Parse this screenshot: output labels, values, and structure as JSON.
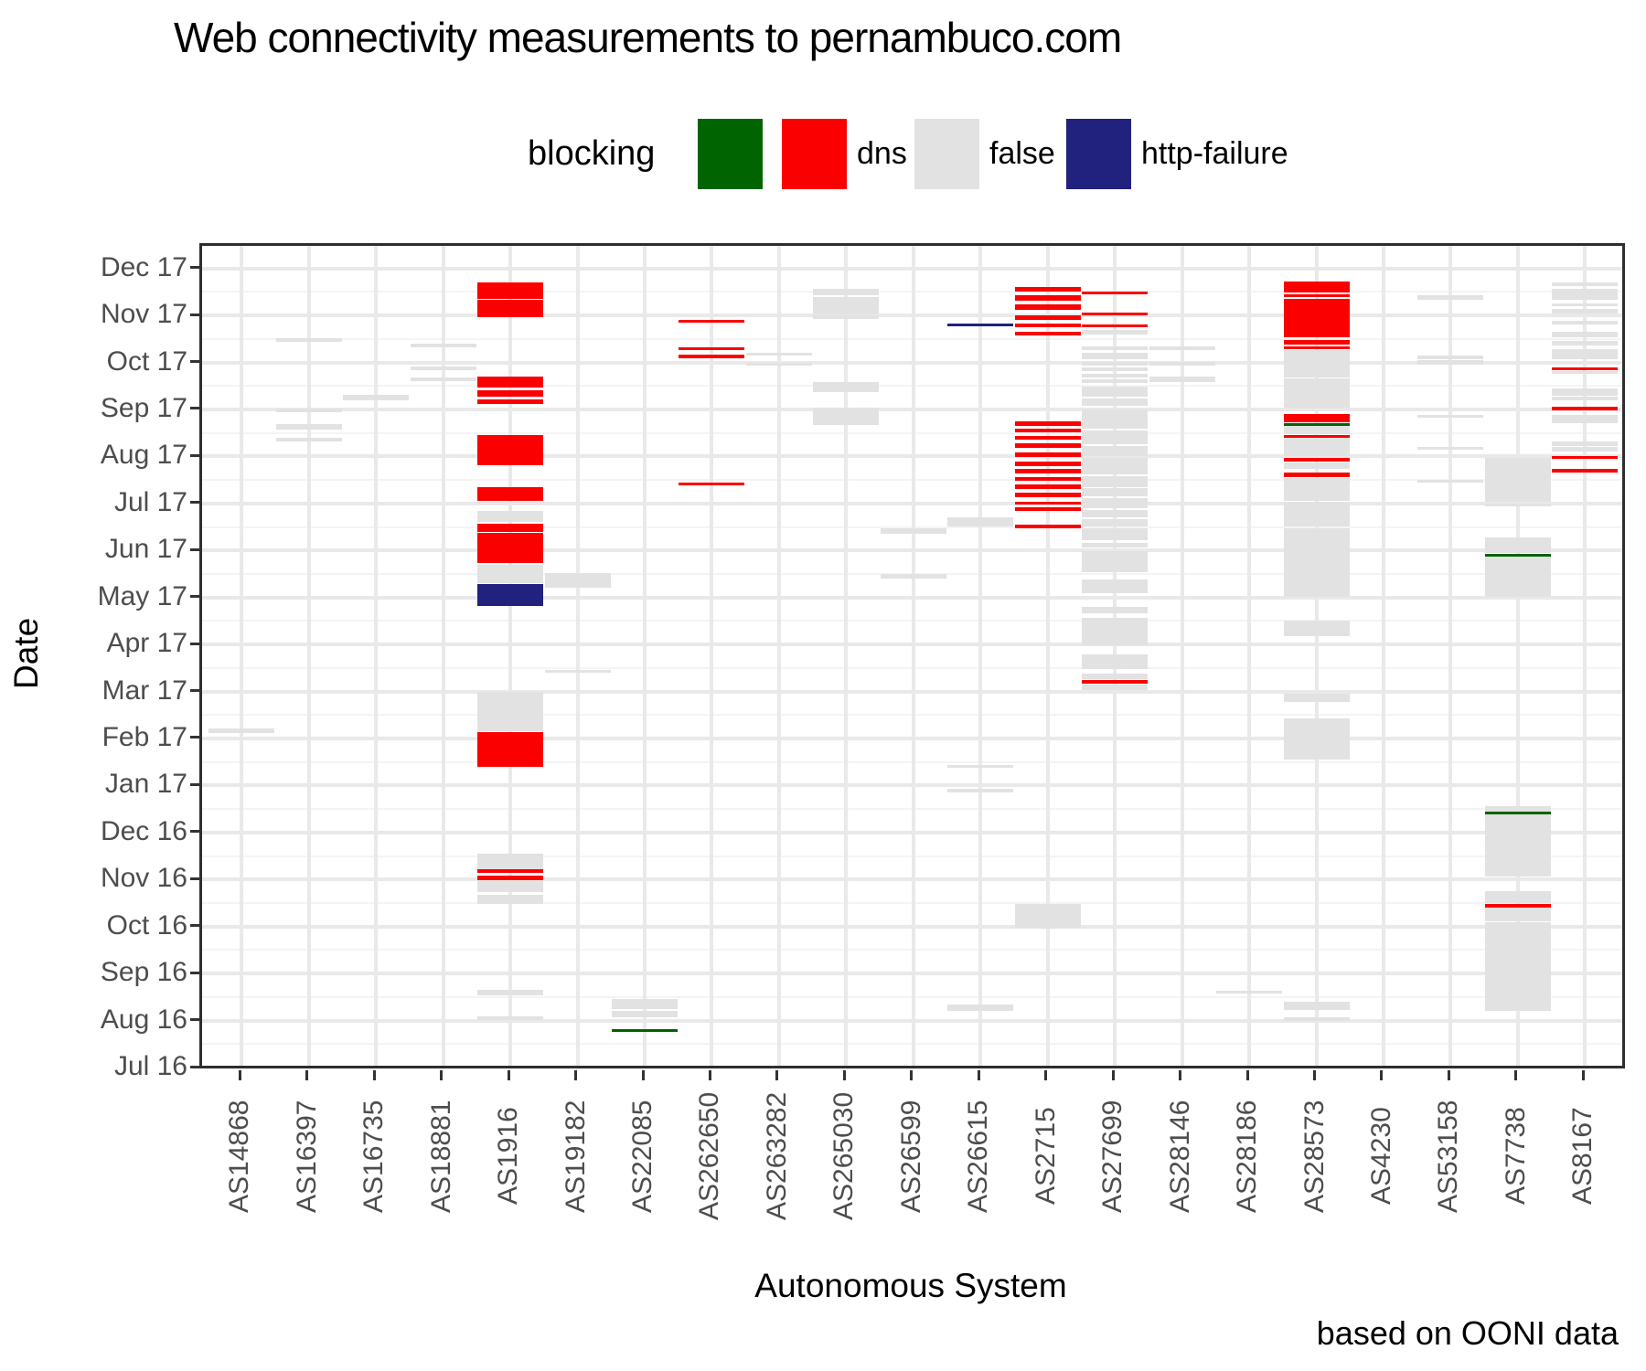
{
  "chart_data": {
    "type": "heatmap",
    "title": "Web connectivity measurements to pernambuco.com",
    "xlabel": "Autonomous System",
    "ylabel": "Date",
    "caption": "based on OONI data",
    "legend": {
      "title": "blocking",
      "items": [
        {
          "label": "",
          "color": "#006400"
        },
        {
          "label": "dns",
          "color": "#fb0000"
        },
        {
          "label": "false",
          "color": "#e2e2e2"
        },
        {
          "label": "http-failure",
          "color": "#21217e"
        }
      ]
    },
    "categories": [
      "AS14868",
      "AS16397",
      "AS16735",
      "AS18881",
      "AS1916",
      "AS19182",
      "AS22085",
      "AS262650",
      "AS263282",
      "AS265030",
      "AS26599",
      "AS26615",
      "AS2715",
      "AS27699",
      "AS28146",
      "AS28186",
      "AS28573",
      "AS4230",
      "AS53158",
      "AS7738",
      "AS8167"
    ],
    "y_ticks": [
      "Jul 16",
      "Aug 16",
      "Sep 16",
      "Oct 16",
      "Nov 16",
      "Dec 16",
      "Jan 17",
      "Feb 17",
      "Mar 17",
      "Apr 17",
      "May 17",
      "Jun 17",
      "Jul 17",
      "Aug 17",
      "Sep 17",
      "Oct 17",
      "Nov 17",
      "Dec 17"
    ],
    "axis_ranges": {
      "y_months_since_2016_07": [
        0,
        17.5
      ],
      "grid": "on",
      "legend_position": "top"
    },
    "marks_format": "[column_index, start, end, status] with start/end in months since 2016-07-01",
    "status_colors": {
      "g": "#006400",
      "r": "#fb0000",
      "y": "#e2e2e2",
      "n": "#21217e"
    },
    "status_names": {
      "g": "",
      "r": "dns",
      "y": "false",
      "n": "http-failure"
    },
    "marks": [
      [
        0,
        7.12,
        7.21,
        "y"
      ],
      [
        1,
        15.44,
        15.52,
        "y"
      ],
      [
        1,
        13.94,
        14.02,
        "y"
      ],
      [
        1,
        13.57,
        13.69,
        "y"
      ],
      [
        1,
        13.32,
        13.4,
        "y"
      ],
      [
        2,
        14.19,
        14.31,
        "y"
      ],
      [
        3,
        15.32,
        15.4,
        "y"
      ],
      [
        3,
        14.84,
        14.91,
        "y"
      ],
      [
        3,
        14.6,
        14.68,
        "y"
      ],
      [
        4,
        16.35,
        16.7,
        "r"
      ],
      [
        4,
        15.96,
        16.33,
        "r"
      ],
      [
        4,
        14.47,
        14.7,
        "r"
      ],
      [
        4,
        14.27,
        14.41,
        "r"
      ],
      [
        4,
        14.12,
        14.21,
        "r"
      ],
      [
        4,
        12.81,
        13.46,
        "r"
      ],
      [
        4,
        12.06,
        12.35,
        "r"
      ],
      [
        4,
        11.61,
        11.84,
        "y"
      ],
      [
        4,
        11.39,
        11.57,
        "r"
      ],
      [
        4,
        10.73,
        11.37,
        "r"
      ],
      [
        4,
        10.31,
        10.69,
        "y"
      ],
      [
        4,
        9.82,
        10.29,
        "n"
      ],
      [
        4,
        7.16,
        7.99,
        "y"
      ],
      [
        4,
        6.4,
        7.14,
        "r"
      ],
      [
        4,
        4.22,
        4.55,
        "y"
      ],
      [
        4,
        4.14,
        4.22,
        "r"
      ],
      [
        4,
        3.99,
        4.08,
        "r"
      ],
      [
        4,
        3.73,
        3.97,
        "y"
      ],
      [
        4,
        3.48,
        3.67,
        "y"
      ],
      [
        4,
        1.54,
        1.65,
        "y"
      ],
      [
        4,
        1.01,
        1.09,
        "y"
      ],
      [
        5,
        10.21,
        10.52,
        "y"
      ],
      [
        5,
        8.4,
        8.46,
        "y"
      ],
      [
        6,
        1.24,
        1.46,
        "y"
      ],
      [
        6,
        1.07,
        1.21,
        "y"
      ],
      [
        6,
        0.76,
        0.82,
        "g"
      ],
      [
        7,
        15.85,
        15.91,
        "r"
      ],
      [
        7,
        15.26,
        15.32,
        "r"
      ],
      [
        7,
        15.09,
        15.17,
        "r"
      ],
      [
        7,
        12.39,
        12.44,
        "r"
      ],
      [
        8,
        15.15,
        15.21,
        "y"
      ],
      [
        8,
        14.93,
        14.99,
        "y"
      ],
      [
        9,
        16.43,
        16.57,
        "y"
      ],
      [
        9,
        16.31,
        16.39,
        "y"
      ],
      [
        9,
        16.02,
        16.31,
        "y"
      ],
      [
        9,
        15.92,
        16.0,
        "y"
      ],
      [
        9,
        14.37,
        14.58,
        "y"
      ],
      [
        9,
        13.67,
        14.04,
        "y"
      ],
      [
        10,
        11.36,
        11.47,
        "y"
      ],
      [
        10,
        10.4,
        10.5,
        "y"
      ],
      [
        11,
        15.77,
        15.83,
        "n"
      ],
      [
        11,
        11.51,
        11.7,
        "y"
      ],
      [
        11,
        6.38,
        6.44,
        "y"
      ],
      [
        11,
        5.85,
        5.93,
        "y"
      ],
      [
        11,
        1.21,
        1.34,
        "y"
      ],
      [
        12,
        16.51,
        16.6,
        "r"
      ],
      [
        12,
        16.31,
        16.43,
        "r"
      ],
      [
        12,
        16.12,
        16.24,
        "r"
      ],
      [
        12,
        15.91,
        16.0,
        "r"
      ],
      [
        12,
        15.75,
        15.83,
        "r"
      ],
      [
        12,
        15.58,
        15.65,
        "r"
      ],
      [
        12,
        13.65,
        13.75,
        "r"
      ],
      [
        12,
        13.51,
        13.59,
        "r"
      ],
      [
        12,
        13.36,
        13.44,
        "r"
      ],
      [
        12,
        13.18,
        13.28,
        "r"
      ],
      [
        12,
        12.99,
        13.09,
        "r"
      ],
      [
        12,
        12.79,
        12.89,
        "r"
      ],
      [
        12,
        12.64,
        12.74,
        "r"
      ],
      [
        12,
        12.48,
        12.56,
        "r"
      ],
      [
        12,
        12.31,
        12.41,
        "r"
      ],
      [
        12,
        12.13,
        12.23,
        "r"
      ],
      [
        12,
        11.98,
        12.03,
        "r"
      ],
      [
        12,
        11.84,
        11.92,
        "r"
      ],
      [
        12,
        11.47,
        11.55,
        "r"
      ],
      [
        12,
        2.96,
        3.48,
        "y"
      ],
      [
        13,
        16.45,
        16.51,
        "r"
      ],
      [
        13,
        16.0,
        16.06,
        "r"
      ],
      [
        13,
        15.75,
        15.81,
        "r"
      ],
      [
        13,
        15.59,
        15.69,
        "y"
      ],
      [
        13,
        15.26,
        15.34,
        "y"
      ],
      [
        13,
        15.07,
        15.21,
        "y"
      ],
      [
        13,
        14.93,
        15.01,
        "y"
      ],
      [
        13,
        14.82,
        14.89,
        "y"
      ],
      [
        13,
        14.68,
        14.76,
        "y"
      ],
      [
        13,
        14.56,
        14.64,
        "y"
      ],
      [
        13,
        14.27,
        14.49,
        "y"
      ],
      [
        13,
        14.08,
        14.23,
        "y"
      ],
      [
        13,
        13.59,
        14.0,
        "y"
      ],
      [
        13,
        13.26,
        13.55,
        "y"
      ],
      [
        13,
        13.01,
        13.22,
        "y"
      ],
      [
        13,
        12.62,
        12.97,
        "y"
      ],
      [
        13,
        12.35,
        12.58,
        "y"
      ],
      [
        13,
        12.15,
        12.33,
        "y"
      ],
      [
        13,
        11.9,
        12.11,
        "y"
      ],
      [
        13,
        11.7,
        11.86,
        "y"
      ],
      [
        13,
        11.51,
        11.67,
        "y"
      ],
      [
        13,
        11.22,
        11.47,
        "y"
      ],
      [
        13,
        11.06,
        11.16,
        "y"
      ],
      [
        13,
        10.54,
        10.99,
        "y"
      ],
      [
        13,
        10.09,
        10.38,
        "y"
      ],
      [
        13,
        9.66,
        9.8,
        "y"
      ],
      [
        13,
        8.98,
        9.57,
        "y"
      ],
      [
        13,
        8.48,
        8.79,
        "y"
      ],
      [
        13,
        8.26,
        8.38,
        "y"
      ],
      [
        13,
        8.17,
        8.24,
        "r"
      ],
      [
        13,
        8.03,
        8.15,
        "y"
      ],
      [
        14,
        15.26,
        15.34,
        "y"
      ],
      [
        14,
        14.93,
        15.01,
        "y"
      ],
      [
        14,
        14.58,
        14.7,
        "y"
      ],
      [
        15,
        1.57,
        1.63,
        "y"
      ],
      [
        16,
        16.49,
        16.72,
        "r"
      ],
      [
        16,
        16.39,
        16.45,
        "r"
      ],
      [
        16,
        15.54,
        16.35,
        "r"
      ],
      [
        16,
        15.38,
        15.48,
        "r"
      ],
      [
        16,
        15.28,
        15.34,
        "r"
      ],
      [
        16,
        14.68,
        15.26,
        "y"
      ],
      [
        16,
        14.04,
        14.66,
        "y"
      ],
      [
        16,
        13.73,
        13.9,
        "r"
      ],
      [
        16,
        13.65,
        13.71,
        "g"
      ],
      [
        16,
        13.48,
        13.65,
        "y"
      ],
      [
        16,
        13.4,
        13.46,
        "r"
      ],
      [
        16,
        13.01,
        13.4,
        "y"
      ],
      [
        16,
        12.89,
        12.97,
        "r"
      ],
      [
        16,
        12.74,
        12.87,
        "y"
      ],
      [
        16,
        12.56,
        12.66,
        "r"
      ],
      [
        16,
        12.06,
        12.54,
        "y"
      ],
      [
        16,
        11.51,
        12.03,
        "y"
      ],
      [
        16,
        10.01,
        11.47,
        "y"
      ],
      [
        16,
        9.18,
        9.51,
        "y"
      ],
      [
        16,
        7.78,
        7.95,
        "y"
      ],
      [
        16,
        6.55,
        7.43,
        "y"
      ],
      [
        16,
        1.22,
        1.4,
        "y"
      ],
      [
        16,
        0.99,
        1.07,
        "y"
      ],
      [
        18,
        16.33,
        16.43,
        "y"
      ],
      [
        18,
        15.07,
        15.15,
        "y"
      ],
      [
        18,
        14.95,
        15.05,
        "y"
      ],
      [
        18,
        13.82,
        13.88,
        "y"
      ],
      [
        18,
        13.14,
        13.2,
        "y"
      ],
      [
        18,
        12.44,
        12.5,
        "y"
      ],
      [
        19,
        12.03,
        12.97,
        "y"
      ],
      [
        19,
        11.94,
        12.0,
        "y"
      ],
      [
        19,
        10.95,
        11.28,
        "y"
      ],
      [
        19,
        10.87,
        10.93,
        "g"
      ],
      [
        19,
        10.01,
        10.87,
        "y"
      ],
      [
        19,
        5.44,
        5.56,
        "y"
      ],
      [
        19,
        5.39,
        5.44,
        "g"
      ],
      [
        19,
        4.06,
        5.39,
        "y"
      ],
      [
        19,
        3.5,
        3.75,
        "y"
      ],
      [
        19,
        3.4,
        3.48,
        "r"
      ],
      [
        19,
        3.11,
        3.4,
        "y"
      ],
      [
        19,
        1.21,
        3.09,
        "y"
      ],
      [
        20,
        16.62,
        16.7,
        "y"
      ],
      [
        20,
        16.33,
        16.57,
        "y"
      ],
      [
        20,
        16.2,
        16.25,
        "y"
      ],
      [
        20,
        16.04,
        16.14,
        "y"
      ],
      [
        20,
        15.81,
        15.89,
        "y"
      ],
      [
        20,
        15.54,
        15.65,
        "y"
      ],
      [
        20,
        15.36,
        15.46,
        "y"
      ],
      [
        20,
        15.07,
        15.28,
        "y"
      ],
      [
        20,
        14.84,
        14.89,
        "r"
      ],
      [
        20,
        14.76,
        14.82,
        "y"
      ],
      [
        20,
        14.29,
        14.45,
        "y"
      ],
      [
        20,
        14.19,
        14.27,
        "y"
      ],
      [
        20,
        13.98,
        14.06,
        "r"
      ],
      [
        20,
        13.71,
        13.88,
        "y"
      ],
      [
        20,
        13.22,
        13.32,
        "y"
      ],
      [
        20,
        13.11,
        13.2,
        "y"
      ],
      [
        20,
        12.95,
        13.01,
        "r"
      ],
      [
        20,
        12.66,
        12.74,
        "r"
      ]
    ]
  }
}
